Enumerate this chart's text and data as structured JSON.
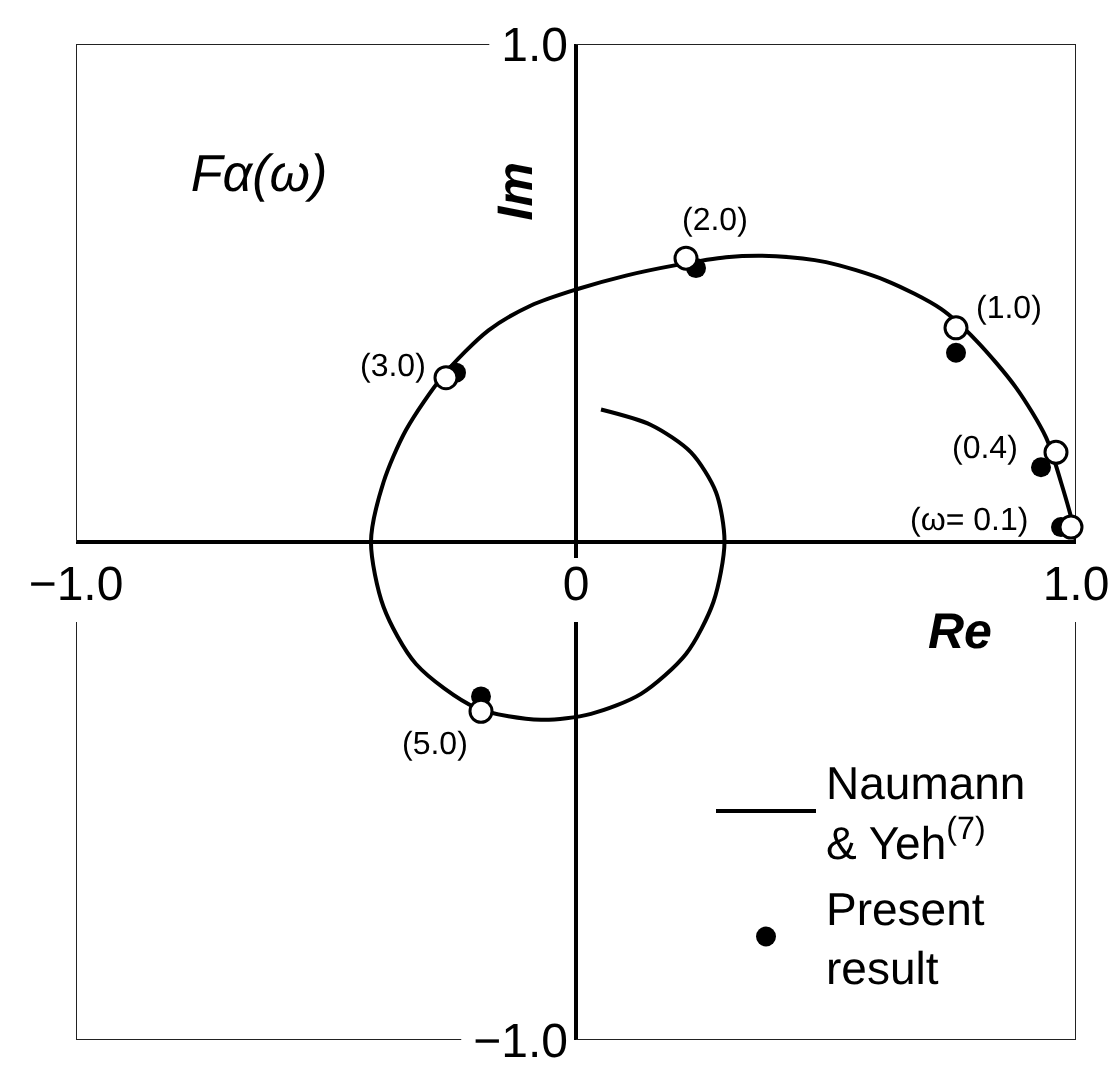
{
  "chart_data": {
    "type": "line",
    "title": "Fα(ω)",
    "xlabel": "Re",
    "ylabel": "Im",
    "xlim": [
      -1,
      1
    ],
    "ylim": [
      -1,
      1
    ],
    "xticks": [
      {
        "value": -1,
        "label": "−1.0"
      },
      0,
      {
        "value": 1,
        "label": "1.0"
      }
    ],
    "yticks": [
      {
        "value": 1,
        "label": "1.0"
      },
      {
        "value": -1,
        "label": "−1.0"
      }
    ],
    "grid": true,
    "series": [
      {
        "name": "Naumann & Yeh$^{(7)}$",
        "color": "#000000",
        "marker": "none",
        "line_style": "solid",
        "x": [
          1.0,
          0.995,
          0.97,
          0.94,
          0.88,
          0.8,
          0.73,
          0.62,
          0.5,
          0.4,
          0.3,
          0.2,
          0.1,
          0.0,
          -0.09,
          -0.175,
          -0.265,
          -0.34,
          -0.385,
          -0.41,
          -0.385,
          -0.32,
          -0.2,
          -0.07,
          0.03,
          0.13,
          0.22,
          0.275,
          0.297,
          0.28,
          0.23,
          0.15,
          0.05
        ],
        "values": [
          0.0,
          0.03,
          0.12,
          0.21,
          0.31,
          0.405,
          0.468,
          0.525,
          0.562,
          0.574,
          0.572,
          0.556,
          0.535,
          0.507,
          0.475,
          0.425,
          0.335,
          0.225,
          0.12,
          0.0,
          -0.13,
          -0.245,
          -0.333,
          -0.357,
          -0.345,
          -0.305,
          -0.225,
          -0.12,
          0.0,
          0.1,
          0.18,
          0.235,
          0.266
        ]
      },
      {
        "name": "Present result",
        "type": "scatter",
        "color": "#000000",
        "marker": "circle",
        "x": [
          0.97,
          0.93,
          0.76,
          0.24,
          -0.24,
          -0.19
        ],
        "values": [
          0.03,
          0.15,
          0.38,
          0.55,
          0.34,
          -0.31
        ]
      },
      {
        "type": "scatter",
        "color": "#ffffff",
        "marker": "circle",
        "x": [
          0.99,
          0.96,
          0.76,
          0.22,
          -0.26,
          -0.19
        ],
        "values": [
          0.03,
          0.18,
          0.43,
          0.57,
          0.33,
          -0.34
        ]
      }
    ],
    "annotations": [
      {
        "text": "(ω= 0.1)",
        "x": 0.99,
        "y": 0.03
      },
      {
        "text": "(0.4)",
        "x": 0.96,
        "y": 0.18
      },
      {
        "text": "(1.0)",
        "x": 0.76,
        "y": 0.43
      },
      {
        "text": "(2.0)",
        "x": 0.22,
        "y": 0.57
      },
      {
        "text": "(3.0)",
        "x": -0.26,
        "y": 0.33
      },
      {
        "text": "(5.0)",
        "x": -0.19,
        "y": -0.34
      }
    ],
    "legend": "bottom right"
  }
}
